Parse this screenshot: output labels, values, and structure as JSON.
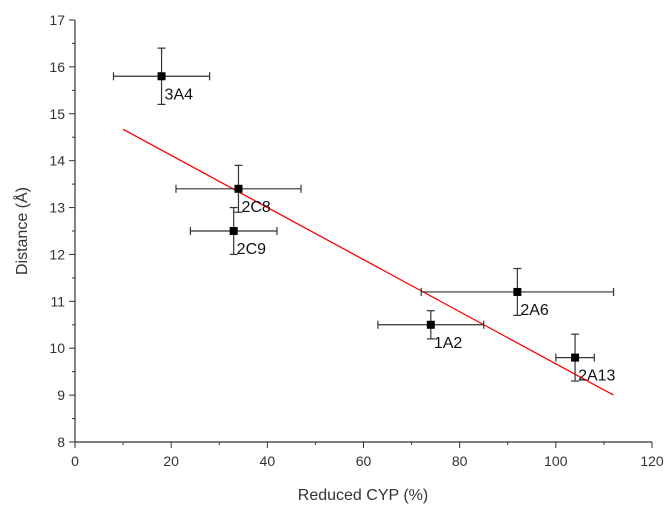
{
  "chart_data": {
    "type": "scatter",
    "xlabel": "Reduced CYP (%)",
    "ylabel": "Distance (Å)",
    "xlim": [
      0,
      120
    ],
    "ylim": [
      8,
      17
    ],
    "xticks": [
      0,
      20,
      40,
      60,
      80,
      100,
      120
    ],
    "yticks": [
      8,
      9,
      10,
      11,
      12,
      13,
      14,
      15,
      16,
      17
    ],
    "grid": false,
    "points": [
      {
        "label": "3A4",
        "x": 18,
        "y": 15.8,
        "xerr": 10,
        "yerr": 0.6
      },
      {
        "label": "2C8",
        "x": 34,
        "y": 13.4,
        "xerr": 13,
        "yerr": 0.5
      },
      {
        "label": "2C9",
        "x": 33,
        "y": 12.5,
        "xerr": 9,
        "yerr": 0.5
      },
      {
        "label": "2A6",
        "x": 92,
        "y": 11.2,
        "xerr": 20,
        "yerr": 0.5
      },
      {
        "label": "1A2",
        "x": 74,
        "y": 10.5,
        "xerr": 11,
        "yerr": 0.3
      },
      {
        "label": "2A13",
        "x": 104,
        "y": 9.8,
        "xerr": 4,
        "yerr": 0.5
      }
    ],
    "fit_line": {
      "x": [
        10,
        112
      ],
      "y": [
        14.67,
        9.0
      ],
      "color": "#ff0000"
    },
    "marker_color": "#000000",
    "errorbar_color": "#333333"
  }
}
